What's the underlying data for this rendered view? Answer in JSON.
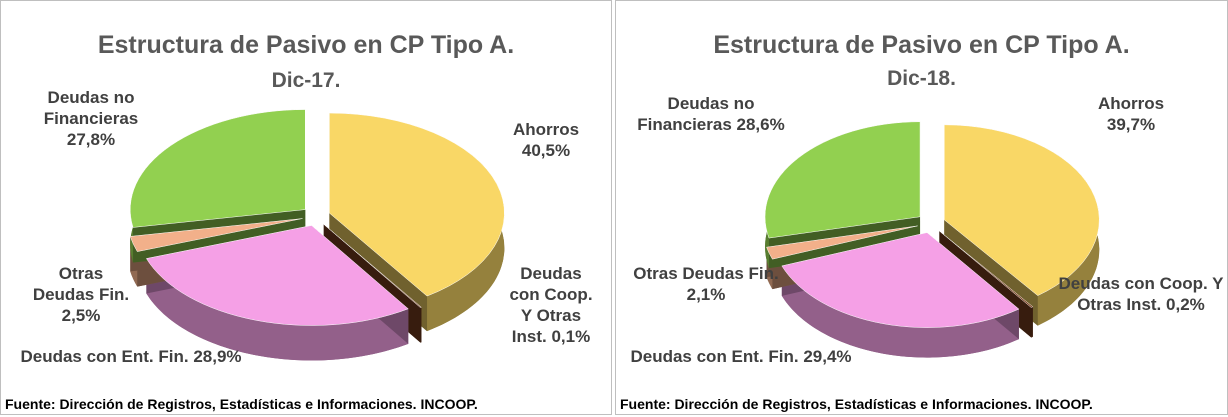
{
  "chart_data": [
    {
      "type": "pie",
      "title": "Estructura de Pasivo en CP Tipo A.",
      "subtitle": "Dic-17.",
      "categories": [
        "Ahorros",
        "Deudas con Coop. Y Otras Inst.",
        "Deudas con Ent. Fin.",
        "Otras Deudas Fin.",
        "Deudas no Financieras"
      ],
      "values": [
        40.5,
        0.1,
        28.9,
        2.5,
        27.8
      ],
      "value_labels": [
        "40,5%",
        "0,1%",
        "28,9%",
        "2,5%",
        "27,8%"
      ],
      "colors": [
        "#f9d766",
        "#7b3f1e",
        "#f5a0e6",
        "#f2b08a",
        "#92d050"
      ],
      "source": "Fuente: Dirección de Registros, Estadísticas e Informaciones. INCOOP."
    },
    {
      "type": "pie",
      "title": "Estructura de Pasivo en CP Tipo A.",
      "subtitle": "Dic-18.",
      "categories": [
        "Ahorros",
        "Deudas con Coop. Y Otras Inst.",
        "Deudas con Ent. Fin.",
        "Otras Deudas Fin.",
        "Deudas no Financieras"
      ],
      "values": [
        39.7,
        0.2,
        29.4,
        2.1,
        28.6
      ],
      "value_labels": [
        "39,7%",
        "0,2%",
        "29,4%",
        "2,1%",
        "28,6%"
      ],
      "colors": [
        "#f9d766",
        "#7b3f1e",
        "#f5a0e6",
        "#f2b08a",
        "#92d050"
      ],
      "source": "Fuente: Dirección de Registros, Estadísticas e Informaciones. INCOOP."
    }
  ]
}
